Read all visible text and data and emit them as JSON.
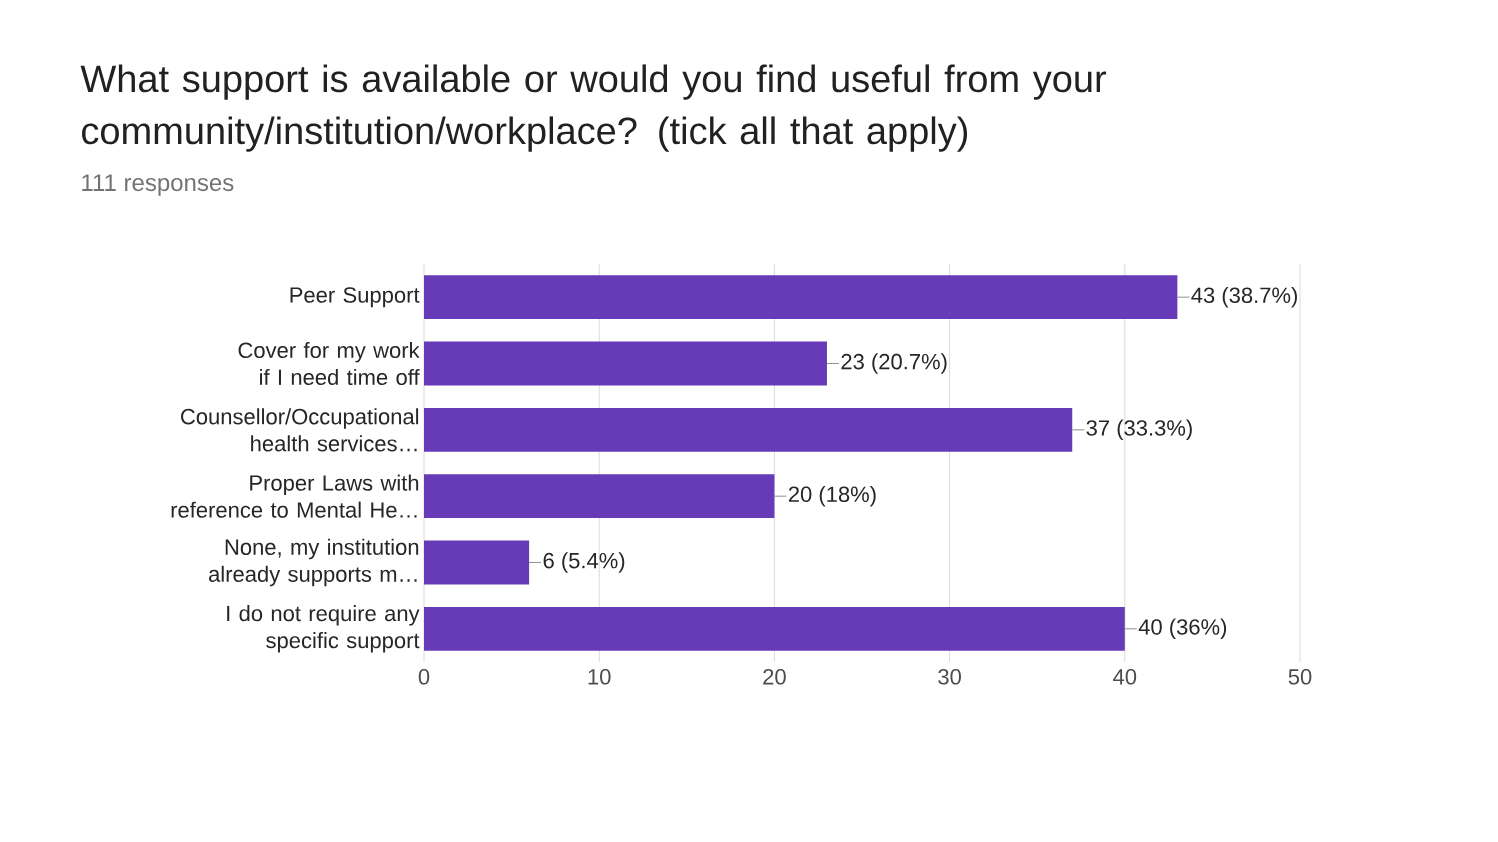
{
  "chart_data": {
    "type": "bar",
    "orientation": "horizontal",
    "title": "What support is available or would you find useful from your community/institution/workplace? (tick all that apply)",
    "subtitle": "111 responses",
    "categories": [
      "Peer Support",
      "Cover for my work if I need time off",
      "Counsellor/Occupational health services…",
      "Proper Laws with reference to Mental He…",
      "None, my institution already supports m…",
      "I do not require any specific support"
    ],
    "values": [
      43,
      23,
      37,
      20,
      6,
      40
    ],
    "value_labels": [
      "43 (38.7%)",
      "23 (20.7%)",
      "37 (33.3%)",
      "20 (18%)",
      "6 (5.4%)",
      "40 (36%)"
    ],
    "color": "#673ab7",
    "xlim": [
      0,
      50
    ],
    "xticks": [
      0,
      10,
      20,
      30,
      40,
      50
    ],
    "grid": "x"
  }
}
